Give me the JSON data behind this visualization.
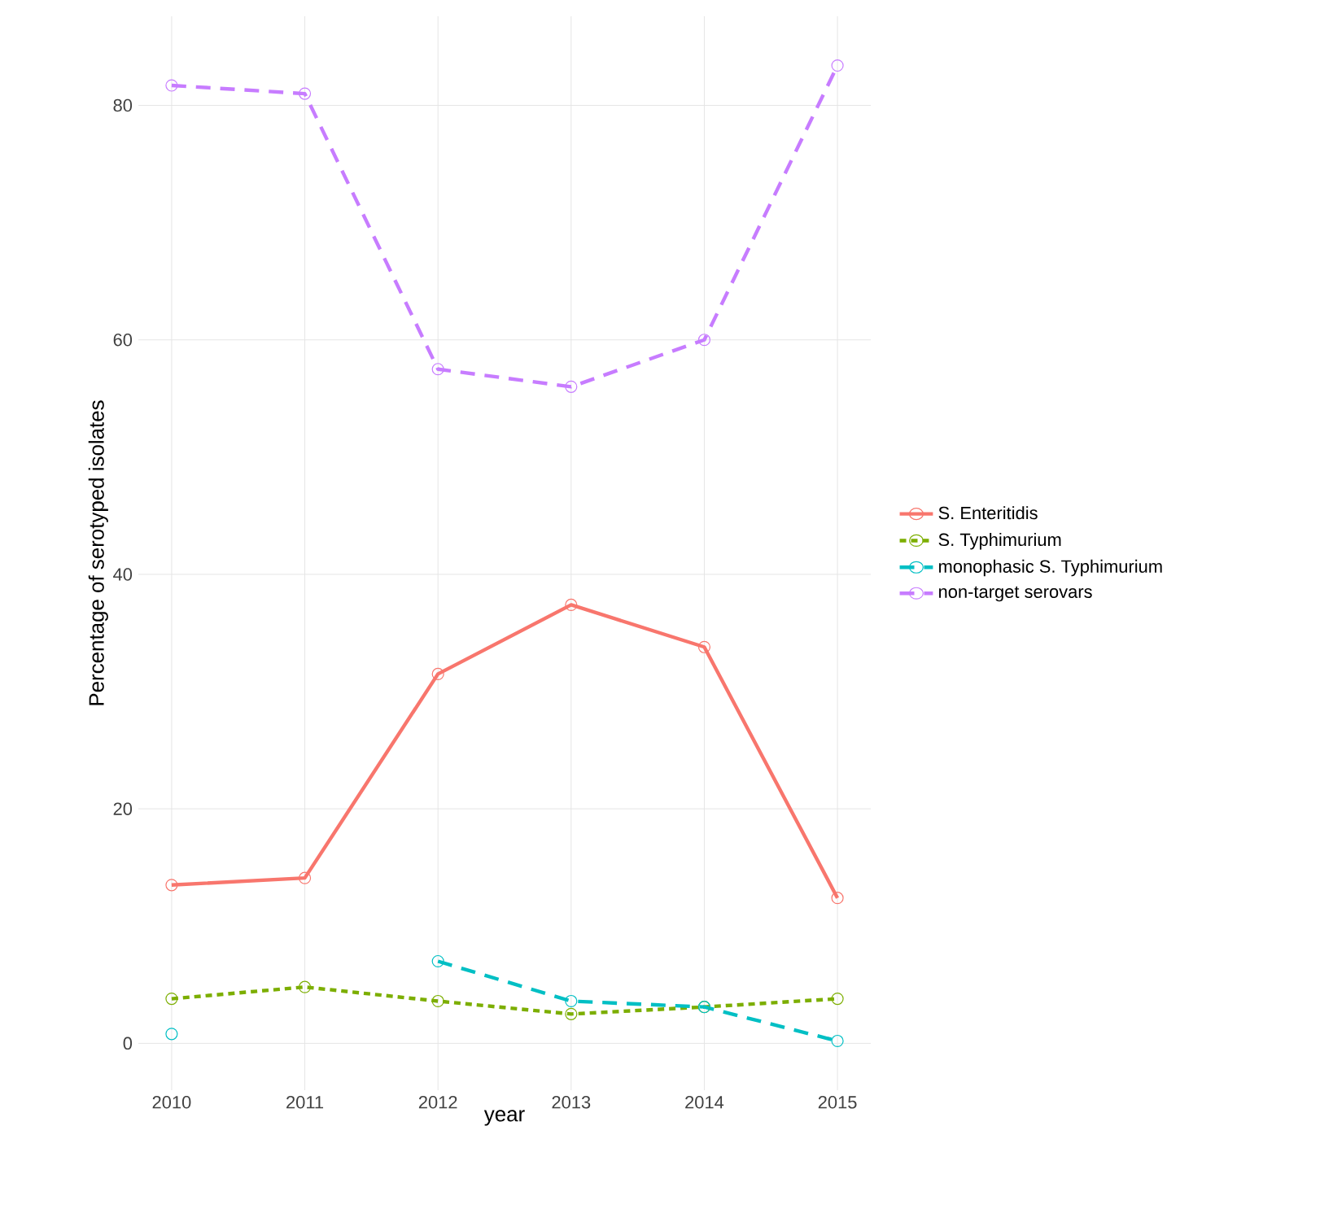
{
  "chart_data": {
    "type": "line",
    "xlabel": "year",
    "ylabel": "Percentage of serotyped isolates",
    "x": [
      2010,
      2011,
      2012,
      2013,
      2014,
      2015
    ],
    "series": [
      {
        "name": "S. Enteritidis",
        "color": "#f8766d",
        "line_style": "solid",
        "values": [
          13.5,
          14.1,
          31.5,
          37.4,
          33.8,
          12.4
        ]
      },
      {
        "name": "S. Typhimurium",
        "color": "#7cae00",
        "line_style": "dotted",
        "values": [
          3.8,
          4.8,
          3.6,
          2.5,
          3.1,
          3.8
        ]
      },
      {
        "name": "monophasic S. Typhimurium",
        "color": "#00bfc4",
        "line_style": "dashed",
        "values": [
          0.8,
          null,
          7.0,
          3.6,
          3.1,
          0.2
        ]
      },
      {
        "name": "non-target serovars",
        "color": "#c77cff",
        "line_style": "dashed",
        "values": [
          81.7,
          81.0,
          57.5,
          56.0,
          60.0,
          83.4
        ]
      }
    ],
    "xlim": [
      2009.75,
      2015.25
    ],
    "ylim": [
      -4,
      87.6
    ],
    "xticks": [
      2010,
      2011,
      2012,
      2013,
      2014,
      2015
    ],
    "yticks": [
      0,
      20,
      40,
      60,
      80
    ],
    "grid": true,
    "legend": "right",
    "marker": "circle"
  }
}
